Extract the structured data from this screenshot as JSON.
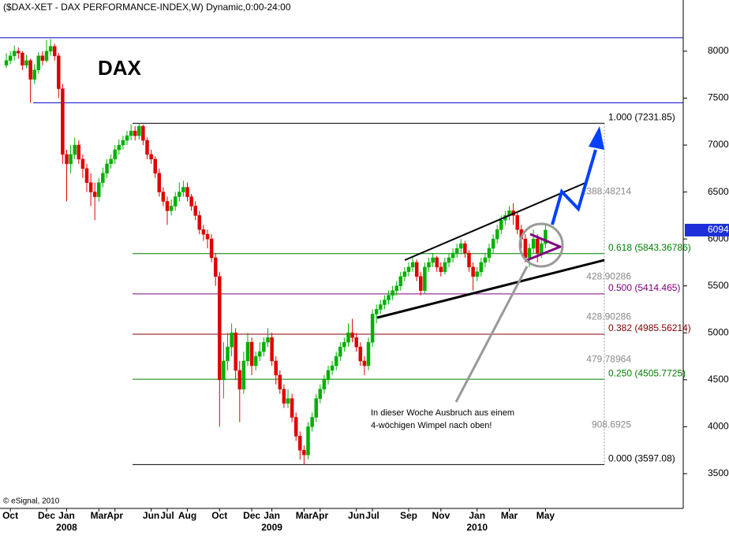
{
  "chart_data": {
    "type": "candlestick",
    "title": "($DAX-XET - DAX PERFORMANCE-INDEX,W) Dynamic,0:00-24:00",
    "label": "DAX",
    "credit": "© eSignal, 2010",
    "annotations": [
      "In dieser Woche Ausbruch aus einem",
      "4-wöchigen Wimpel nach oben!"
    ],
    "up_color": "#00b000",
    "down_color": "#e00000",
    "ylim": [
      3130,
      8545
    ],
    "yticks": [
      3500,
      4000,
      4500,
      5000,
      5500,
      6000,
      6500,
      7000,
      7500,
      8000
    ],
    "hlines": [
      {
        "value": 8143,
        "color": "#0000cc"
      },
      {
        "value": 7450,
        "color": "#0000cc"
      }
    ],
    "fib_levels": [
      {
        "value": 7231.85,
        "label": "1.000 (7231.85)",
        "color": "#000000"
      },
      {
        "value": 5843.36786,
        "label": "0.618 (5843.36786)",
        "color": "#008000"
      },
      {
        "value": 5414.465,
        "label": "0.500 (5414.465)",
        "color": "#800080"
      },
      {
        "value": 4985.56214,
        "label": "0.382 (4985.56214)",
        "color": "#800000"
      },
      {
        "value": 4505.7725,
        "label": "0.250 (4505.7725)",
        "color": "#008000"
      },
      {
        "value": 3597.08,
        "label": "0.000 (3597.08)",
        "color": "#000000"
      }
    ],
    "fib_gaps": [
      1388.48214,
      428.90286,
      428.90286,
      479.78964,
      908.6925
    ],
    "years": [
      "2008",
      "2009",
      "2010"
    ],
    "categories": [
      null,
      "Oct",
      null,
      null,
      null,
      null,
      null,
      null,
      null,
      null,
      "Dec",
      null,
      null,
      null,
      null,
      "Jan",
      null,
      null,
      null,
      null,
      null,
      null,
      null,
      "Mar",
      null,
      null,
      null,
      "Apr",
      null,
      null,
      null,
      null,
      null,
      null,
      null,
      null,
      "Jun",
      null,
      null,
      null,
      "Jul",
      null,
      null,
      null,
      null,
      "Aug",
      null,
      null,
      null,
      null,
      null,
      null,
      null,
      "Oct",
      null,
      null,
      null,
      null,
      null,
      null,
      null,
      "Dec",
      null,
      null,
      null,
      null,
      "Jan",
      null,
      null,
      null,
      null,
      null,
      null,
      null,
      "Mar",
      null,
      null,
      null,
      "Apr",
      null,
      null,
      null,
      null,
      null,
      null,
      null,
      null,
      "Jun",
      null,
      null,
      null,
      "Jul",
      null,
      null,
      null,
      null,
      null,
      null,
      null,
      null,
      "Sep",
      null,
      null,
      null,
      null,
      null,
      null,
      null,
      "Nov",
      null,
      null,
      null,
      null,
      null,
      null,
      null,
      null,
      "Jan",
      null,
      null,
      null,
      null,
      null,
      null,
      null,
      "Mar",
      null,
      null,
      null,
      null,
      null,
      null,
      null,
      null,
      "May"
    ],
    "ohlc": [
      [
        7850,
        7980,
        7820,
        7900
      ],
      [
        7900,
        8000,
        7860,
        7950
      ],
      [
        7950,
        8060,
        7900,
        8000
      ],
      [
        8000,
        8040,
        7920,
        7980
      ],
      [
        7980,
        8000,
        7800,
        7850
      ],
      [
        7850,
        7960,
        7820,
        7900
      ],
      [
        7900,
        7920,
        7450,
        7700
      ],
      [
        7700,
        7860,
        7650,
        7800
      ],
      [
        7800,
        7990,
        7760,
        7950
      ],
      [
        7950,
        8000,
        7850,
        7900
      ],
      [
        7900,
        8120,
        7880,
        8000
      ],
      [
        8000,
        8130,
        7950,
        8050
      ],
      [
        8050,
        8080,
        7900,
        7950
      ],
      [
        7950,
        7980,
        7500,
        7600
      ],
      [
        7600,
        7650,
        6800,
        6900
      ],
      [
        6900,
        6950,
        6400,
        6800
      ],
      [
        6800,
        7000,
        6700,
        6900
      ],
      [
        6900,
        7080,
        6850,
        7000
      ],
      [
        7000,
        7050,
        6800,
        6850
      ],
      [
        6850,
        6900,
        6650,
        6750
      ],
      [
        6750,
        6800,
        6500,
        6600
      ],
      [
        6600,
        6700,
        6350,
        6500
      ],
      [
        6500,
        6600,
        6200,
        6450
      ],
      [
        6450,
        6650,
        6400,
        6600
      ],
      [
        6600,
        6760,
        6550,
        6700
      ],
      [
        6700,
        6850,
        6650,
        6800
      ],
      [
        6800,
        6900,
        6750,
        6850
      ],
      [
        6850,
        7000,
        6800,
        6950
      ],
      [
        6950,
        7060,
        6900,
        7000
      ],
      [
        7000,
        7100,
        6950,
        7050
      ],
      [
        7050,
        7150,
        7000,
        7100
      ],
      [
        7100,
        7220,
        7050,
        7150
      ],
      [
        7150,
        7200,
        7050,
        7100
      ],
      [
        7100,
        7232,
        7060,
        7200
      ],
      [
        7200,
        7220,
        7000,
        7050
      ],
      [
        7050,
        7080,
        6850,
        6900
      ],
      [
        6900,
        6950,
        6800,
        6850
      ],
      [
        6850,
        6880,
        6650,
        6700
      ],
      [
        6700,
        6750,
        6450,
        6500
      ],
      [
        6500,
        6550,
        6350,
        6400
      ],
      [
        6400,
        6450,
        6150,
        6300
      ],
      [
        6300,
        6420,
        6250,
        6350
      ],
      [
        6350,
        6500,
        6300,
        6450
      ],
      [
        6450,
        6600,
        6400,
        6500
      ],
      [
        6500,
        6620,
        6450,
        6550
      ],
      [
        6550,
        6600,
        6400,
        6450
      ],
      [
        6450,
        6480,
        6300,
        6350
      ],
      [
        6350,
        6400,
        6200,
        6250
      ],
      [
        6250,
        6300,
        6050,
        6100
      ],
      [
        6100,
        6150,
        5980,
        6050
      ],
      [
        6050,
        6100,
        5900,
        6000
      ],
      [
        6000,
        6050,
        5750,
        5800
      ],
      [
        5800,
        5850,
        5500,
        5600
      ],
      [
        5600,
        5650,
        4000,
        4500
      ],
      [
        4500,
        4900,
        4300,
        4700
      ],
      [
        4700,
        5000,
        4600,
        4850
      ],
      [
        4850,
        5100,
        4750,
        5000
      ],
      [
        5000,
        5050,
        4500,
        4600
      ],
      [
        4600,
        4700,
        4050,
        4400
      ],
      [
        4400,
        4800,
        4350,
        4700
      ],
      [
        4700,
        5000,
        4650,
        4900
      ],
      [
        4900,
        4950,
        4550,
        4650
      ],
      [
        4650,
        4800,
        4600,
        4750
      ],
      [
        4750,
        4900,
        4700,
        4800
      ],
      [
        4800,
        4950,
        4750,
        4900
      ],
      [
        4900,
        5050,
        4850,
        4950
      ],
      [
        4950,
        5000,
        4650,
        4700
      ],
      [
        4700,
        4750,
        4450,
        4550
      ],
      [
        4550,
        4600,
        4350,
        4400
      ],
      [
        4400,
        4450,
        4200,
        4250
      ],
      [
        4250,
        4400,
        4200,
        4300
      ],
      [
        4300,
        4350,
        4050,
        4100
      ],
      [
        4100,
        4150,
        3850,
        3900
      ],
      [
        3900,
        3950,
        3650,
        3750
      ],
      [
        3750,
        3800,
        3597,
        3700
      ],
      [
        3700,
        4050,
        3650,
        4000
      ],
      [
        4000,
        4150,
        3950,
        4100
      ],
      [
        4100,
        4350,
        4050,
        4300
      ],
      [
        4300,
        4450,
        4250,
        4400
      ],
      [
        4400,
        4550,
        4350,
        4500
      ],
      [
        4500,
        4650,
        4450,
        4600
      ],
      [
        4600,
        4700,
        4550,
        4650
      ],
      [
        4650,
        4800,
        4600,
        4750
      ],
      [
        4750,
        4900,
        4700,
        4850
      ],
      [
        4850,
        4950,
        4800,
        4900
      ],
      [
        4900,
        5100,
        4850,
        5000
      ],
      [
        5000,
        5150,
        4900,
        4950
      ],
      [
        4950,
        5000,
        4800,
        4850
      ],
      [
        4850,
        4900,
        4650,
        4700
      ],
      [
        4700,
        4750,
        4550,
        4650
      ],
      [
        4650,
        4950,
        4600,
        4900
      ],
      [
        4900,
        5250,
        4850,
        5200
      ],
      [
        5200,
        5300,
        5100,
        5250
      ],
      [
        5250,
        5350,
        5200,
        5300
      ],
      [
        5300,
        5400,
        5250,
        5350
      ],
      [
        5350,
        5450,
        5300,
        5400
      ],
      [
        5400,
        5500,
        5350,
        5450
      ],
      [
        5450,
        5550,
        5400,
        5500
      ],
      [
        5500,
        5650,
        5450,
        5600
      ],
      [
        5600,
        5700,
        5550,
        5650
      ],
      [
        5650,
        5750,
        5600,
        5700
      ],
      [
        5700,
        5800,
        5650,
        5750
      ],
      [
        5750,
        5780,
        5550,
        5600
      ],
      [
        5600,
        5650,
        5400,
        5450
      ],
      [
        5450,
        5750,
        5420,
        5700
      ],
      [
        5700,
        5800,
        5650,
        5750
      ],
      [
        5750,
        5850,
        5700,
        5800
      ],
      [
        5800,
        5820,
        5650,
        5700
      ],
      [
        5700,
        5750,
        5600,
        5650
      ],
      [
        5650,
        5800,
        5620,
        5750
      ],
      [
        5750,
        5850,
        5700,
        5800
      ],
      [
        5800,
        5900,
        5750,
        5850
      ],
      [
        5850,
        5950,
        5800,
        5900
      ],
      [
        5900,
        6000,
        5850,
        5950
      ],
      [
        5950,
        5980,
        5800,
        5850
      ],
      [
        5850,
        5880,
        5650,
        5700
      ],
      [
        5700,
        5750,
        5450,
        5600
      ],
      [
        5600,
        5700,
        5550,
        5650
      ],
      [
        5650,
        5800,
        5600,
        5750
      ],
      [
        5750,
        5850,
        5700,
        5800
      ],
      [
        5800,
        5950,
        5750,
        5900
      ],
      [
        5900,
        6050,
        5850,
        6000
      ],
      [
        6000,
        6150,
        5950,
        6100
      ],
      [
        6100,
        6250,
        6050,
        6200
      ],
      [
        6200,
        6300,
        6150,
        6250
      ],
      [
        6250,
        6350,
        6200,
        6300
      ],
      [
        6300,
        6380,
        6150,
        6250
      ],
      [
        6250,
        6280,
        6050,
        6100
      ],
      [
        6100,
        6150,
        5900,
        6000
      ],
      [
        6000,
        6050,
        5750,
        5800
      ],
      [
        5800,
        5950,
        5700,
        5900
      ],
      [
        5900,
        6100,
        5850,
        6000
      ],
      [
        6000,
        6050,
        5750,
        5850
      ],
      [
        5850,
        6000,
        5800,
        5950
      ],
      [
        5950,
        6150,
        5900,
        6094
      ]
    ]
  }
}
